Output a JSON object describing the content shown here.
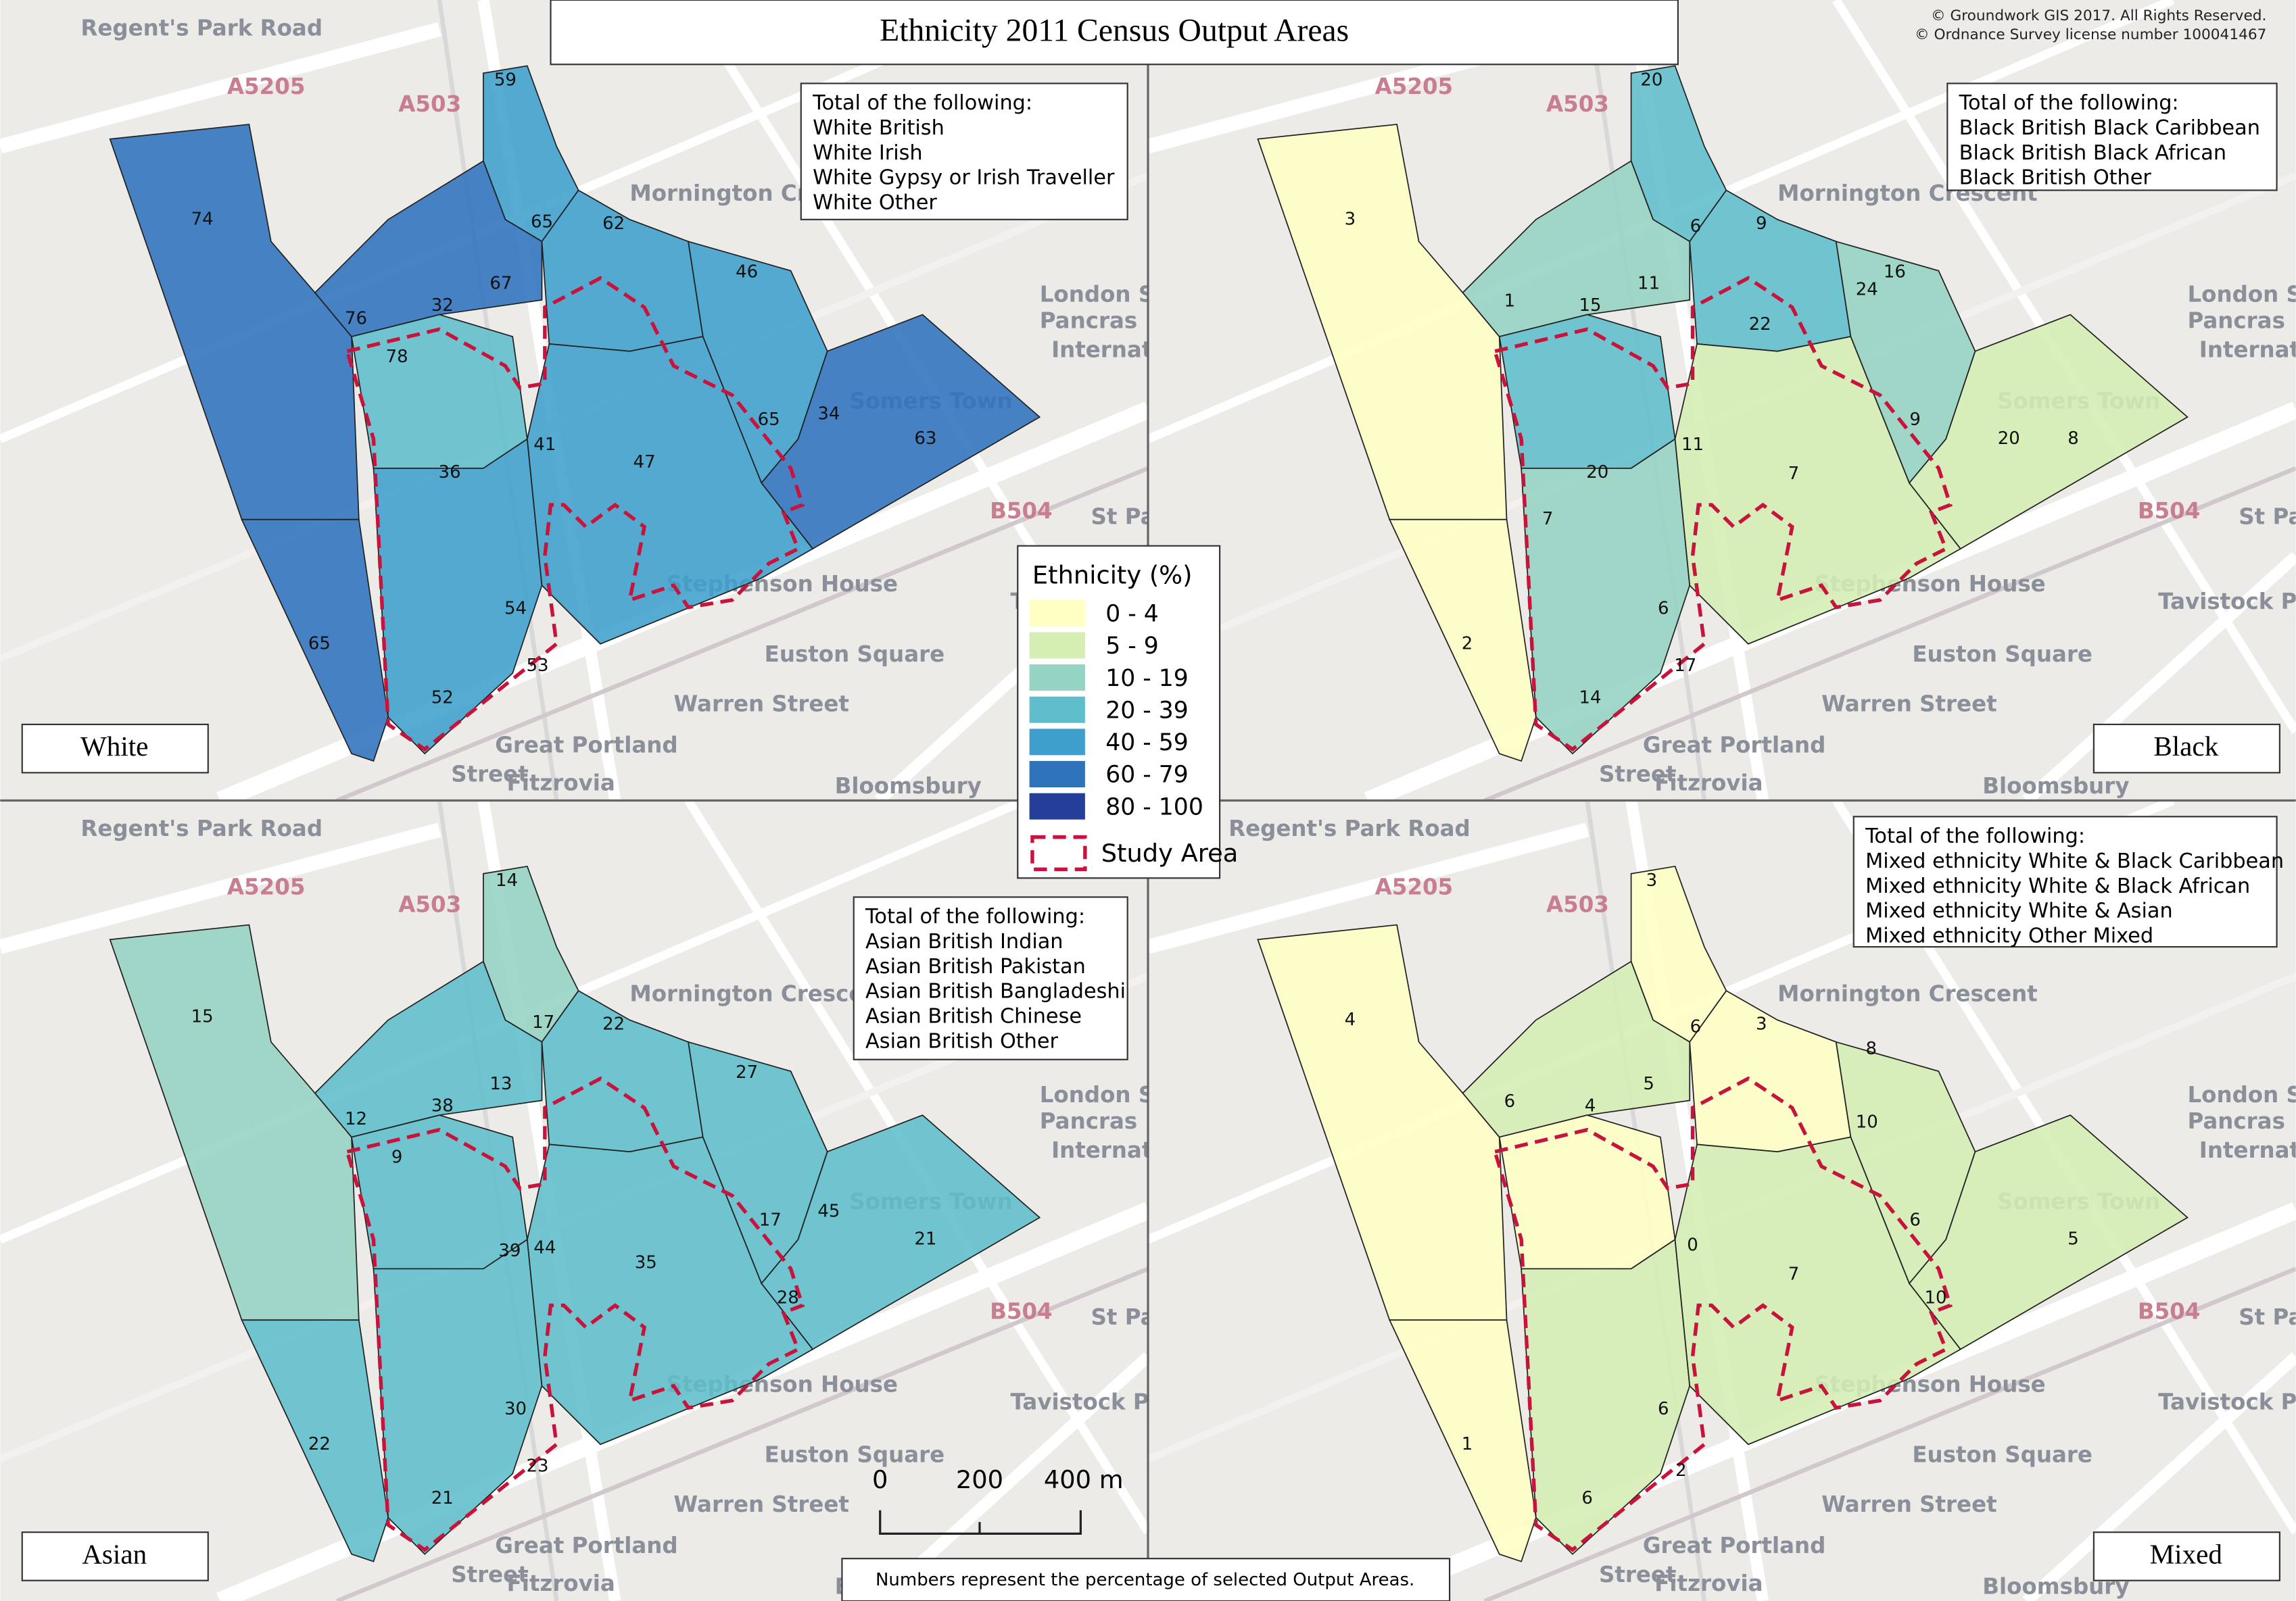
{
  "title": "Ethnicity 2011 Census Output Areas",
  "credits": [
    "© Groundwork GIS 2017. All Rights Reserved.",
    "© Ordnance Survey license number 100041467"
  ],
  "basemap_labels": [
    "Regent's Park Road",
    "A5205",
    "A503",
    "Mornington Crescent",
    "London St",
    "Pancras",
    "International",
    "Somers Town",
    "St Pancr",
    "B504",
    "Euston Square",
    "Warren Street",
    "Great Portland",
    "Street",
    "Fitzrovia",
    "Bloomsbury",
    "Stephenson House",
    "Tavistock Place"
  ],
  "legend": {
    "title": "Ethnicity (%)",
    "classes": [
      {
        "label": "0 - 4",
        "range": [
          0,
          4
        ],
        "color": "#ffffc4"
      },
      {
        "label": "5 - 9",
        "range": [
          5,
          9
        ],
        "color": "#d4eeb4"
      },
      {
        "label": "10 - 19",
        "range": [
          10,
          19
        ],
        "color": "#95d3c2"
      },
      {
        "label": "20 - 39",
        "range": [
          20,
          39
        ],
        "color": "#5ebecb"
      },
      {
        "label": "40 - 59",
        "range": [
          40,
          59
        ],
        "color": "#3f9fcc"
      },
      {
        "label": "60 - 79",
        "range": [
          60,
          79
        ],
        "color": "#2f73bd"
      },
      {
        "label": "80 - 100",
        "range": [
          80,
          100
        ],
        "color": "#243e99"
      }
    ],
    "study_area": "Study Area"
  },
  "panels": [
    {
      "label": "White",
      "note": [
        "Total of the following:",
        "White British",
        "White Irish",
        "White Gypsy or Irish Traveller",
        "White Other"
      ],
      "area_values": [
        74,
        59,
        65,
        62,
        76,
        78,
        32,
        67,
        46,
        41,
        36,
        47,
        65,
        34,
        63,
        54,
        53,
        52,
        65
      ]
    },
    {
      "label": "Black",
      "note": [
        "Total of the following:",
        "Black British Black Caribbean",
        "Black British Black African",
        "Black British Other"
      ],
      "area_values": [
        20,
        3,
        6,
        9,
        1,
        11,
        15,
        16,
        24,
        22,
        20,
        11,
        9,
        20,
        8,
        7,
        7,
        6,
        17,
        14,
        2
      ]
    },
    {
      "label": "Asian",
      "note": [
        "Total of the following:",
        "Asian British Indian",
        "Asian British Pakistan",
        "Asian British Bangladeshi",
        "Asian British Chinese",
        "Asian British Other"
      ],
      "area_values": [
        14,
        15,
        17,
        22,
        13,
        38,
        27,
        12,
        9,
        39,
        44,
        35,
        17,
        45,
        21,
        28,
        30,
        23,
        21,
        22
      ]
    },
    {
      "label": "Mixed",
      "note": [
        "Total of the following:",
        "Mixed ethnicity White & Black Caribbean",
        "Mixed ethnicity White & Black African",
        "Mixed ethnicity White & Asian",
        "Mixed ethnicity Other Mixed"
      ],
      "area_values": [
        3,
        4,
        6,
        3,
        6,
        4,
        5,
        8,
        10,
        0,
        6,
        5,
        7,
        10,
        6,
        2,
        6,
        1
      ]
    }
  ],
  "scale_bar": {
    "ticks": [
      "0",
      "200",
      "400 m"
    ]
  },
  "footnote": "Numbers represent the percentage of selected Output Areas."
}
